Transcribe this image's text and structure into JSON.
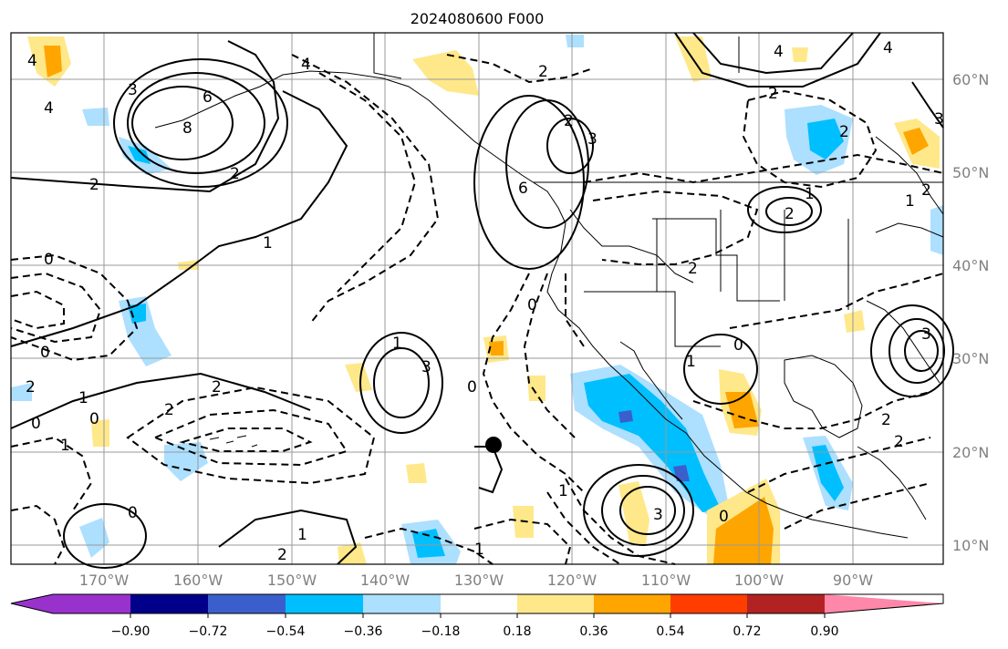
{
  "title": "2024080600 F000",
  "latitude_labels": [
    "60°N",
    "50°N",
    "40°N",
    "30°N",
    "20°N",
    "10°N"
  ],
  "longitude_labels": [
    "170°W",
    "160°W",
    "150°W",
    "140°W",
    "130°W",
    "120°W",
    "110°W",
    "100°W",
    "90°W"
  ],
  "colorbar": {
    "tick_labels": [
      "−0.90",
      "−0.72",
      "−0.54",
      "−0.36",
      "−0.18",
      "0.18",
      "0.36",
      "0.54",
      "0.72",
      "0.90"
    ],
    "colors": [
      "#9932cc",
      "#00008b",
      "#3a5fcd",
      "#00bfff",
      "#addfff",
      "#ffffff",
      "#ffe88a",
      "#ffa500",
      "#ff3d00",
      "#b22222",
      "#ff88aa"
    ]
  },
  "contour_labels": [
    "4",
    "3",
    "6",
    "8",
    "2",
    "2",
    "2",
    "2",
    "4",
    "3",
    "2",
    "4",
    "6",
    "4",
    "1",
    "2",
    "1",
    "0",
    "0",
    "1",
    "2",
    "0",
    "1",
    "0",
    "2",
    "2",
    "0",
    "1",
    "1",
    "0",
    "1",
    "3",
    "2",
    "0",
    "1",
    "1",
    "0",
    "3",
    "2",
    "0",
    "2",
    "3",
    "2",
    "2",
    "1",
    "2",
    "3",
    "4"
  ],
  "colors": {
    "positive_contour": "#000000",
    "negative_contour": "#000000",
    "grid": "#999999",
    "coastline": "#000000"
  }
}
